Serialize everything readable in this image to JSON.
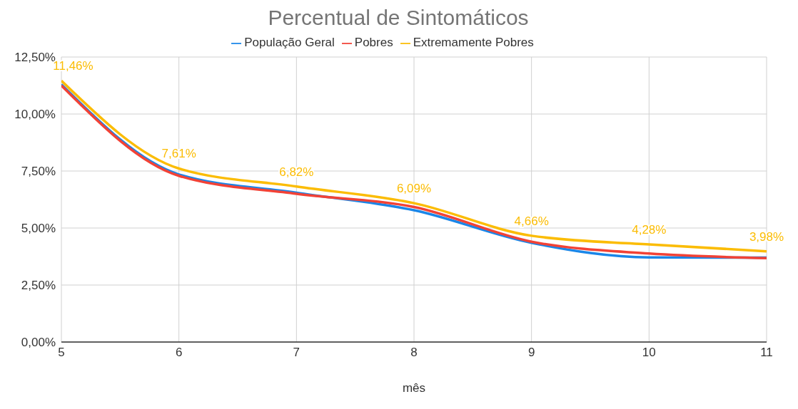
{
  "chart_data": {
    "type": "line",
    "title": "Percentual de Sintomáticos",
    "xlabel": "mês",
    "x": [
      5,
      6,
      7,
      8,
      9,
      10,
      11
    ],
    "series": [
      {
        "name": "População Geral",
        "color": "#1a86e8",
        "values": [
          11.3,
          7.35,
          6.55,
          5.78,
          4.35,
          3.71,
          3.7
        ]
      },
      {
        "name": "Pobres",
        "color": "#f24236",
        "values": [
          11.25,
          7.29,
          6.5,
          5.92,
          4.4,
          3.88,
          3.68
        ]
      },
      {
        "name": "Extremamente Pobres",
        "color": "#fbbc04",
        "values": [
          11.46,
          7.61,
          6.82,
          6.09,
          4.66,
          4.28,
          3.98
        ],
        "value_labels": [
          "11,46%",
          "7,61%",
          "6,82%",
          "6,09%",
          "4,66%",
          "4,28%",
          "3,98%"
        ]
      }
    ],
    "xlim": [
      5,
      11
    ],
    "xticks": [
      5,
      6,
      7,
      8,
      9,
      10,
      11
    ],
    "ylim": [
      0,
      12.5
    ],
    "yticks": [
      {
        "value": 0,
        "label": "0,00%"
      },
      {
        "value": 2.5,
        "label": "2,50%"
      },
      {
        "value": 5,
        "label": "5,00%"
      },
      {
        "value": 7.5,
        "label": "7,50%"
      },
      {
        "value": 10,
        "label": "10,00%"
      },
      {
        "value": 12.5,
        "label": "12,50%"
      }
    ],
    "grid": true,
    "legend": "top",
    "marker": "none",
    "line_style": "solid"
  }
}
